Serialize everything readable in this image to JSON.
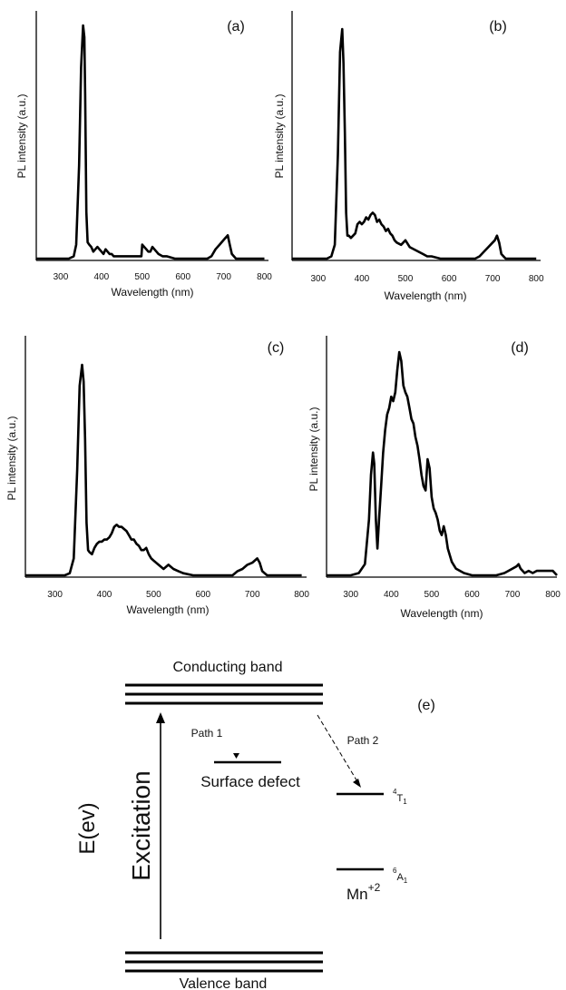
{
  "chart_data": [
    {
      "panel": "(a)",
      "type": "line",
      "xlabel": "Wavelength (nm)",
      "ylabel": "PL intensity (a.u.)",
      "xlim": [
        240,
        810
      ],
      "ylim": [
        0,
        100
      ],
      "xticks": [
        300,
        400,
        500,
        600,
        700,
        800
      ],
      "grid": false,
      "series": [
        {
          "x": [
            240,
            300,
            320,
            332,
            338,
            345,
            350,
            355,
            358,
            360,
            363,
            366,
            370,
            375,
            380,
            385,
            390,
            395,
            400,
            405,
            410,
            415,
            420,
            425,
            430,
            440,
            450,
            460,
            470,
            480,
            490,
            498,
            500,
            505,
            510,
            515,
            520,
            525,
            530,
            535,
            540,
            550,
            560,
            580,
            600,
            620,
            640,
            660,
            670,
            680,
            690,
            700,
            705,
            710,
            715,
            720,
            725,
            730,
            740,
            760,
            780,
            800
          ],
          "y": [
            0,
            0,
            0,
            1,
            6,
            40,
            82,
            100,
            95,
            70,
            20,
            7,
            6,
            5,
            3,
            4,
            5,
            4,
            3,
            2,
            4,
            3,
            2,
            2,
            1,
            1,
            1,
            1,
            1,
            1,
            1,
            1,
            6,
            5,
            4,
            3,
            3,
            5,
            4,
            3,
            2,
            1,
            1,
            0,
            0,
            0,
            0,
            0,
            1,
            4,
            6,
            8,
            9,
            10,
            6,
            2,
            1,
            0,
            0,
            0,
            0,
            0
          ]
        }
      ]
    },
    {
      "panel": "(b)",
      "type": "line",
      "xlabel": "Wavelength (nm)",
      "ylabel": "PL intensity (a.u.)",
      "xlim": [
        240,
        810
      ],
      "ylim": [
        0,
        100
      ],
      "xticks": [
        300,
        400,
        500,
        600,
        700,
        800
      ],
      "grid": false,
      "series": [
        {
          "x": [
            240,
            300,
            320,
            330,
            338,
            345,
            350,
            355,
            358,
            361,
            364,
            367,
            370,
            375,
            380,
            385,
            390,
            395,
            400,
            405,
            410,
            415,
            420,
            425,
            430,
            435,
            440,
            445,
            450,
            455,
            460,
            465,
            470,
            475,
            480,
            490,
            500,
            510,
            520,
            530,
            540,
            550,
            560,
            580,
            600,
            620,
            640,
            660,
            670,
            680,
            690,
            700,
            705,
            710,
            715,
            720,
            725,
            730,
            740,
            760,
            780,
            800
          ],
          "y": [
            0,
            0,
            0,
            1,
            6,
            45,
            90,
            100,
            85,
            55,
            20,
            10,
            10,
            9,
            10,
            11,
            15,
            16,
            15,
            16,
            18,
            17,
            19,
            20,
            19,
            16,
            17,
            15,
            14,
            12,
            13,
            11,
            10,
            8,
            7,
            6,
            8,
            5,
            4,
            3,
            2,
            1,
            1,
            0,
            0,
            0,
            0,
            0,
            1,
            3,
            5,
            7,
            8,
            10,
            7,
            2,
            1,
            0,
            0,
            0,
            0,
            0
          ]
        }
      ]
    },
    {
      "panel": "(c)",
      "type": "line",
      "xlabel": "Wavelength (nm)",
      "ylabel": "PL intensity (a.u.)",
      "xlim": [
        240,
        810
      ],
      "ylim": [
        0,
        100
      ],
      "xticks": [
        300,
        400,
        500,
        600,
        700,
        800
      ],
      "grid": false,
      "series": [
        {
          "x": [
            240,
            300,
            320,
            330,
            338,
            345,
            350,
            355,
            358,
            361,
            364,
            367,
            370,
            375,
            380,
            385,
            390,
            395,
            400,
            405,
            410,
            415,
            420,
            425,
            430,
            435,
            440,
            445,
            450,
            455,
            460,
            465,
            470,
            475,
            480,
            485,
            490,
            495,
            500,
            510,
            520,
            530,
            540,
            550,
            560,
            580,
            600,
            620,
            640,
            660,
            670,
            680,
            690,
            700,
            705,
            710,
            715,
            720,
            725,
            730,
            740,
            760,
            780,
            800
          ],
          "y": [
            0,
            0,
            0,
            1,
            8,
            50,
            90,
            100,
            92,
            65,
            25,
            12,
            11,
            10,
            13,
            15,
            16,
            16,
            17,
            17,
            18,
            20,
            23,
            24,
            23,
            23,
            22,
            21,
            19,
            17,
            17,
            15,
            14,
            12,
            12,
            13,
            10,
            8,
            7,
            5,
            3,
            5,
            3,
            2,
            1,
            0,
            0,
            0,
            0,
            0,
            2,
            3,
            5,
            6,
            7,
            8,
            6,
            2,
            1,
            0,
            0,
            0,
            0,
            0
          ]
        }
      ]
    },
    {
      "panel": "(d)",
      "type": "line",
      "xlabel": "Wavelength (nm)",
      "ylabel": "PL intensity (a.u.)",
      "xlim": [
        240,
        810
      ],
      "ylim": [
        0,
        100
      ],
      "xticks": [
        300,
        400,
        500,
        600,
        700,
        800
      ],
      "grid": false,
      "series": [
        {
          "x": [
            240,
            300,
            320,
            335,
            345,
            350,
            355,
            358,
            362,
            366,
            370,
            375,
            380,
            385,
            390,
            395,
            400,
            405,
            410,
            415,
            420,
            425,
            430,
            435,
            440,
            445,
            450,
            455,
            460,
            465,
            470,
            475,
            480,
            485,
            490,
            495,
            500,
            505,
            510,
            515,
            520,
            525,
            530,
            535,
            540,
            550,
            560,
            580,
            600,
            620,
            640,
            660,
            680,
            690,
            700,
            710,
            715,
            720,
            730,
            740,
            750,
            760,
            770,
            780,
            790,
            800,
            810
          ],
          "y": [
            0,
            0,
            1,
            5,
            25,
            45,
            55,
            50,
            25,
            12,
            25,
            40,
            55,
            65,
            72,
            75,
            80,
            78,
            82,
            92,
            100,
            96,
            85,
            82,
            80,
            75,
            70,
            68,
            62,
            58,
            52,
            45,
            40,
            38,
            52,
            48,
            35,
            30,
            28,
            25,
            20,
            18,
            22,
            18,
            12,
            6,
            3,
            1,
            0,
            0,
            0,
            0,
            1,
            2,
            3,
            4,
            5,
            3,
            1,
            2,
            1,
            2,
            2,
            2,
            2,
            2,
            0
          ]
        }
      ]
    }
  ],
  "panels": {
    "a": {
      "label": "(a)"
    },
    "b": {
      "label": "(b)"
    },
    "c": {
      "label": "(c)"
    },
    "d": {
      "label": "(d)"
    }
  },
  "diagram": {
    "label": "(e)",
    "conducting_band": "Conducting band",
    "valence_band": "Valence band",
    "y_axis_label": "E(ev)",
    "excitation": "Excitation",
    "path1": "Path 1",
    "path2": "Path 2",
    "surface_defect": "Surface defect",
    "level_4t1_sup": "4",
    "level_4t1_base": "T",
    "level_4t1_sub": "1",
    "mn_base": "Mn",
    "mn_sup": "+2",
    "level_6a1_sup": "6",
    "level_6a1_base": "A",
    "level_6a1_sub": "1"
  }
}
